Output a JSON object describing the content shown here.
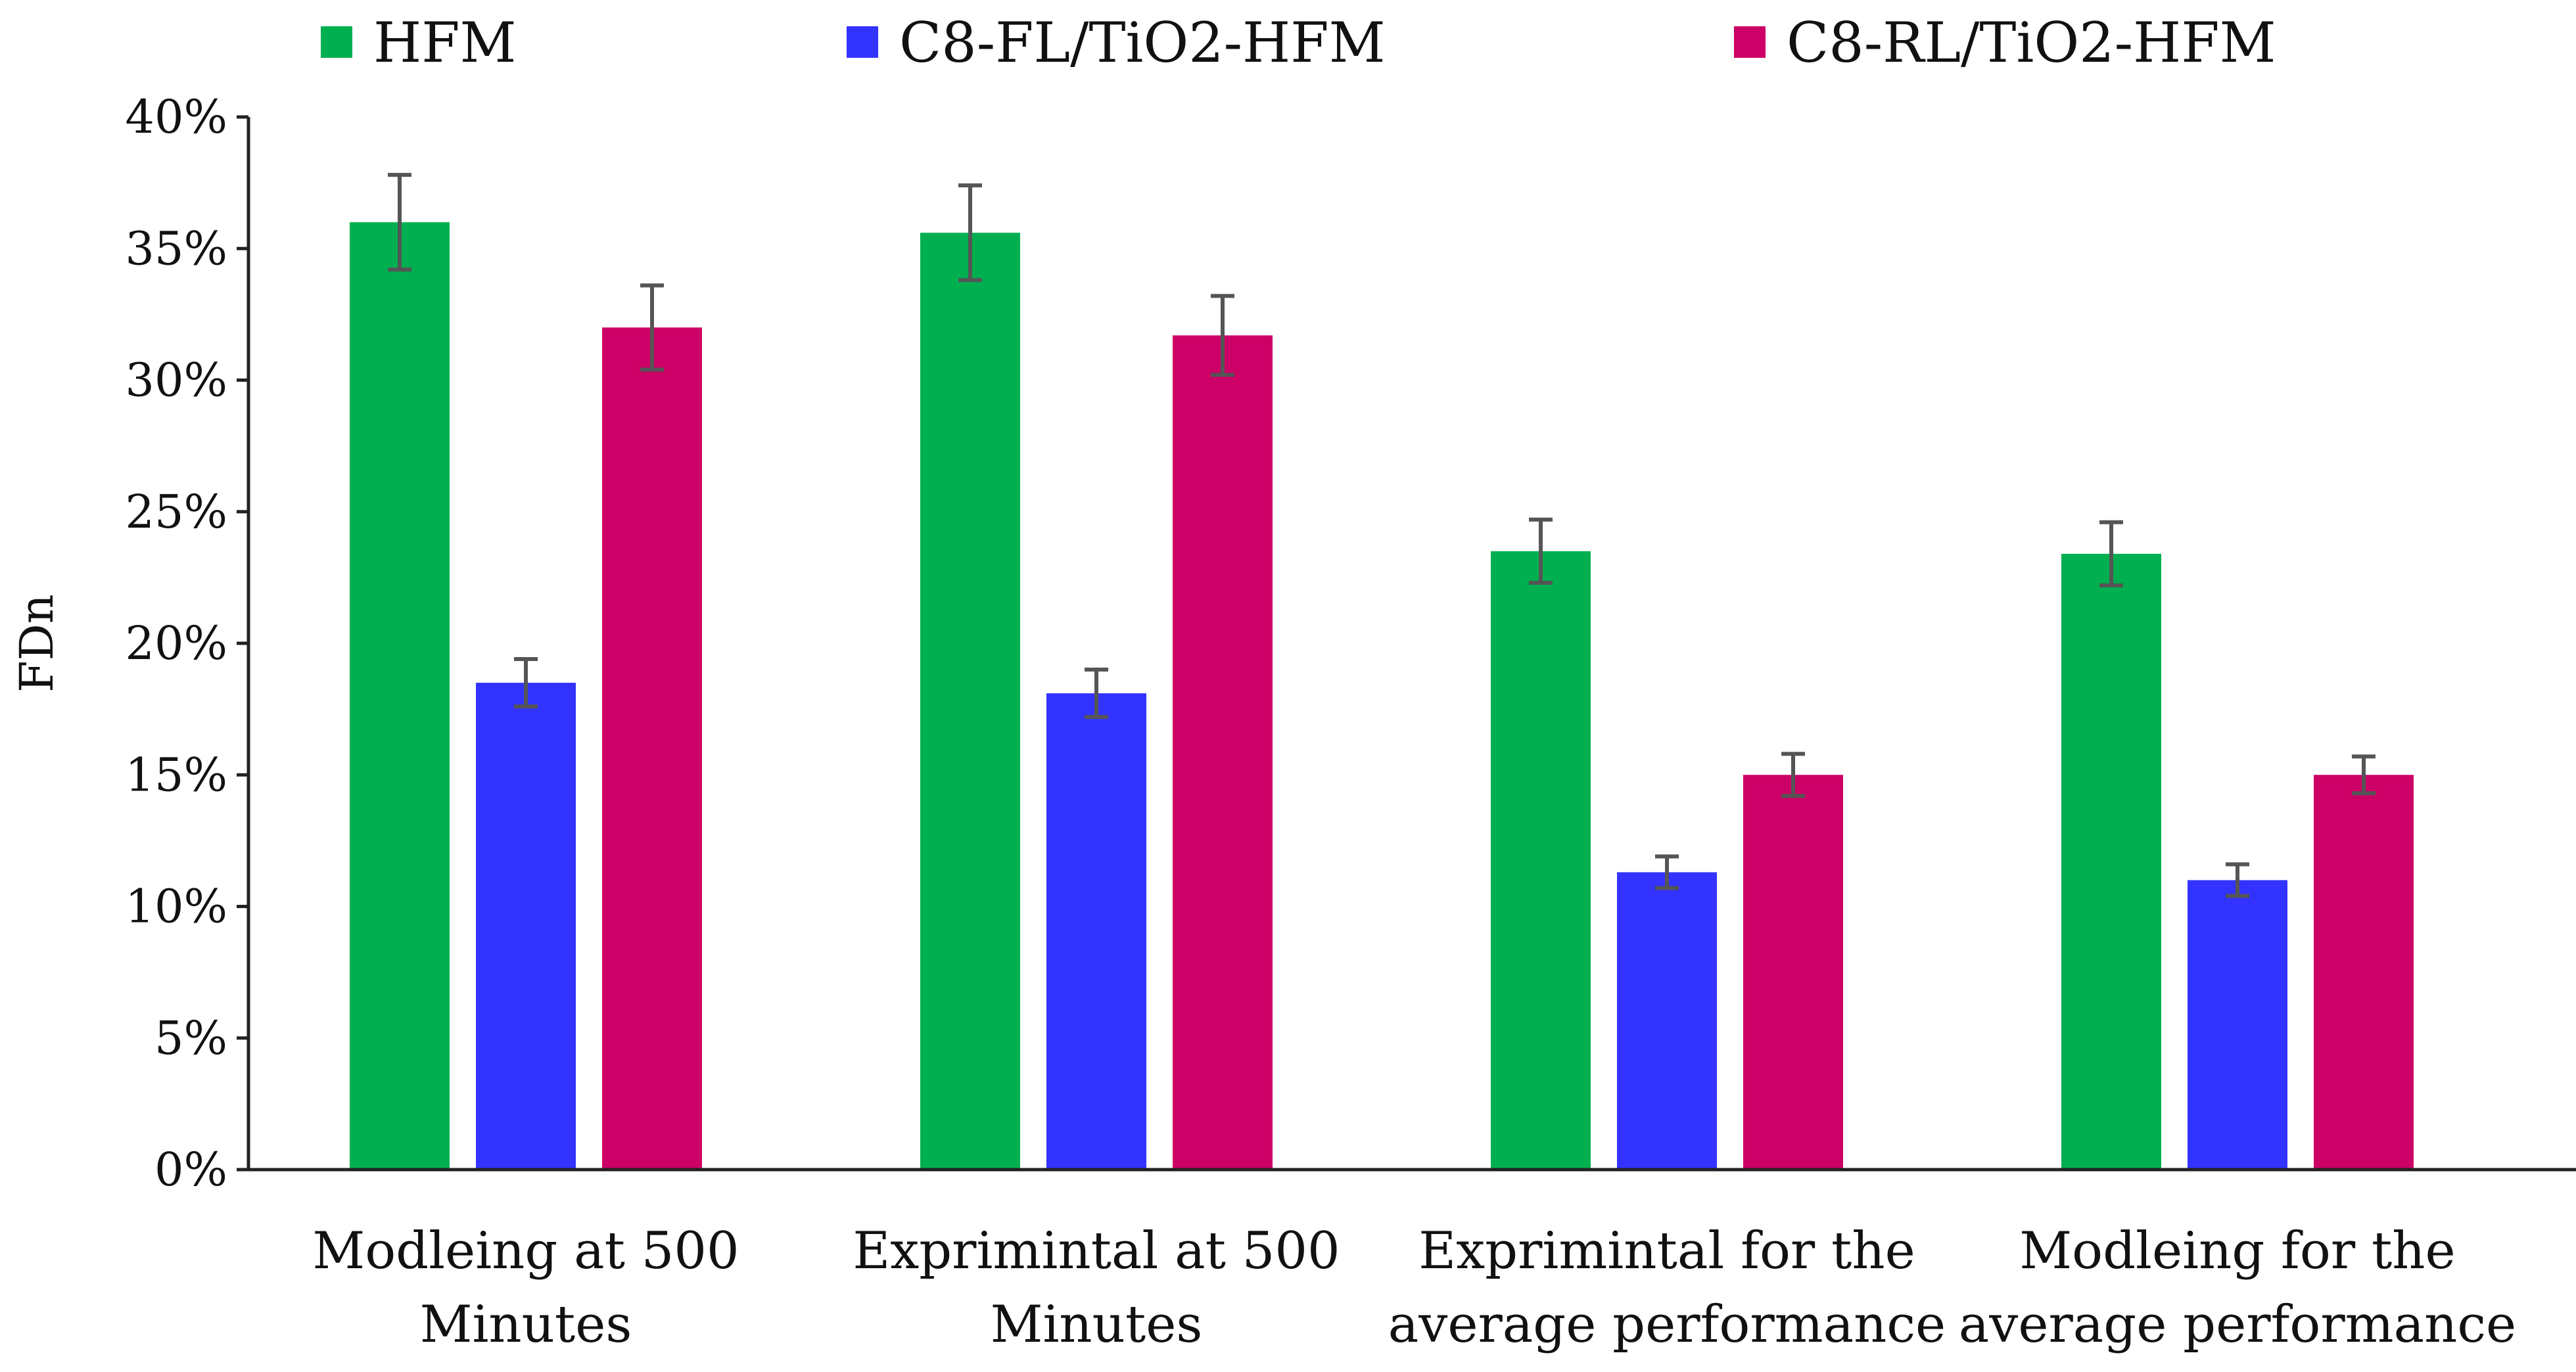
{
  "chart_data": {
    "type": "bar",
    "title": "",
    "xlabel": "",
    "ylabel": "FDn",
    "categories": [
      [
        "Modleing at 500",
        "Minutes"
      ],
      [
        "Exprimintal at 500",
        "Minutes"
      ],
      [
        "Exprimintal for the",
        "average performance"
      ],
      [
        "Modleing for the",
        "average performance"
      ]
    ],
    "series": [
      {
        "name": "HFM",
        "color": "#00B050",
        "values": [
          36.0,
          35.6,
          23.5,
          23.4
        ],
        "errors": [
          1.8,
          1.8,
          1.2,
          1.2
        ]
      },
      {
        "name": "C8-FL/TiO2-HFM",
        "color": "#3333FF",
        "values": [
          18.5,
          18.1,
          11.3,
          11.0
        ],
        "errors": [
          0.9,
          0.9,
          0.6,
          0.6
        ]
      },
      {
        "name": "C8-RL/TiO2-HFM",
        "color": "#CC0066",
        "values": [
          32.0,
          31.7,
          15.0,
          15.0
        ],
        "errors": [
          1.6,
          1.5,
          0.8,
          0.7
        ]
      }
    ],
    "ylim": [
      0,
      40
    ],
    "yticks": [
      0,
      5,
      10,
      15,
      20,
      25,
      30,
      35,
      40
    ],
    "ytick_labels": [
      "0%",
      "5%",
      "10%",
      "15%",
      "20%",
      "25%",
      "30%",
      "35%",
      "40%"
    ],
    "grid": false,
    "legend_position": "top",
    "error_bar_color": "#555555",
    "axis_color": "#222222"
  }
}
